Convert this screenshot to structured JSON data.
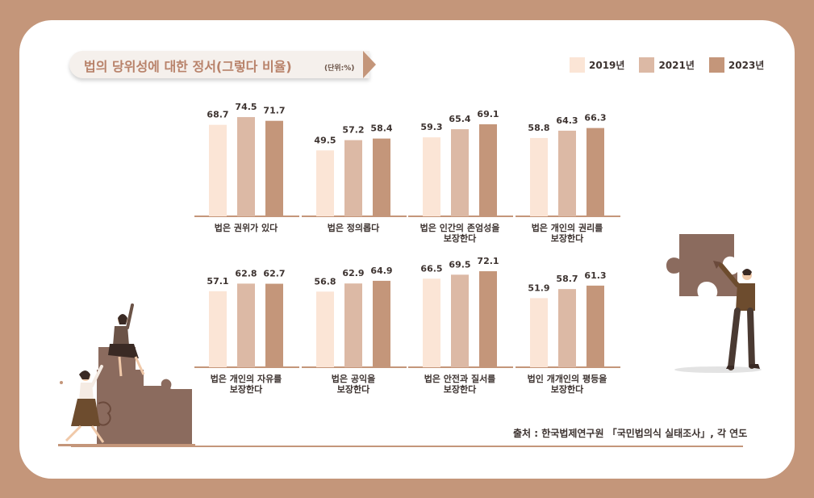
{
  "title": "법의 당위성에 대한 정서(그렇다 비율)",
  "unit": "(단위:%)",
  "legend": [
    {
      "label": "2019년",
      "color": "#fbe5d6"
    },
    {
      "label": "2021년",
      "color": "#dcb9a5"
    },
    {
      "label": "2023년",
      "color": "#c4967a"
    }
  ],
  "source": "출처 : 한국법제연구원 「국민법의식 실태조사」, 각 연도",
  "chart_data": {
    "type": "bar",
    "series_names": [
      "2019년",
      "2021년",
      "2023년"
    ],
    "groups": [
      {
        "label": [
          "법은 권위가 있다"
        ],
        "values": [
          68.7,
          74.5,
          71.7
        ]
      },
      {
        "label": [
          "법은 정의롭다"
        ],
        "values": [
          49.5,
          57.2,
          58.4
        ]
      },
      {
        "label": [
          "법은 인간의 존엄성을",
          "보장한다"
        ],
        "values": [
          59.3,
          65.4,
          69.1
        ]
      },
      {
        "label": [
          "법은 개인의 권리를",
          "보장한다"
        ],
        "values": [
          58.8,
          64.3,
          66.3
        ]
      },
      {
        "label": [
          "법은 개인의 자유를",
          "보장한다"
        ],
        "values": [
          57.1,
          62.8,
          62.7
        ]
      },
      {
        "label": [
          "법은 공익을",
          "보장한다"
        ],
        "values": [
          56.8,
          62.9,
          64.9
        ]
      },
      {
        "label": [
          "법은 안전과 질서를",
          "보장한다"
        ],
        "values": [
          66.5,
          69.5,
          72.1
        ]
      },
      {
        "label": [
          "법인 개개인의 평등을",
          "보장한다"
        ],
        "values": [
          51.9,
          58.7,
          61.3
        ]
      }
    ]
  }
}
